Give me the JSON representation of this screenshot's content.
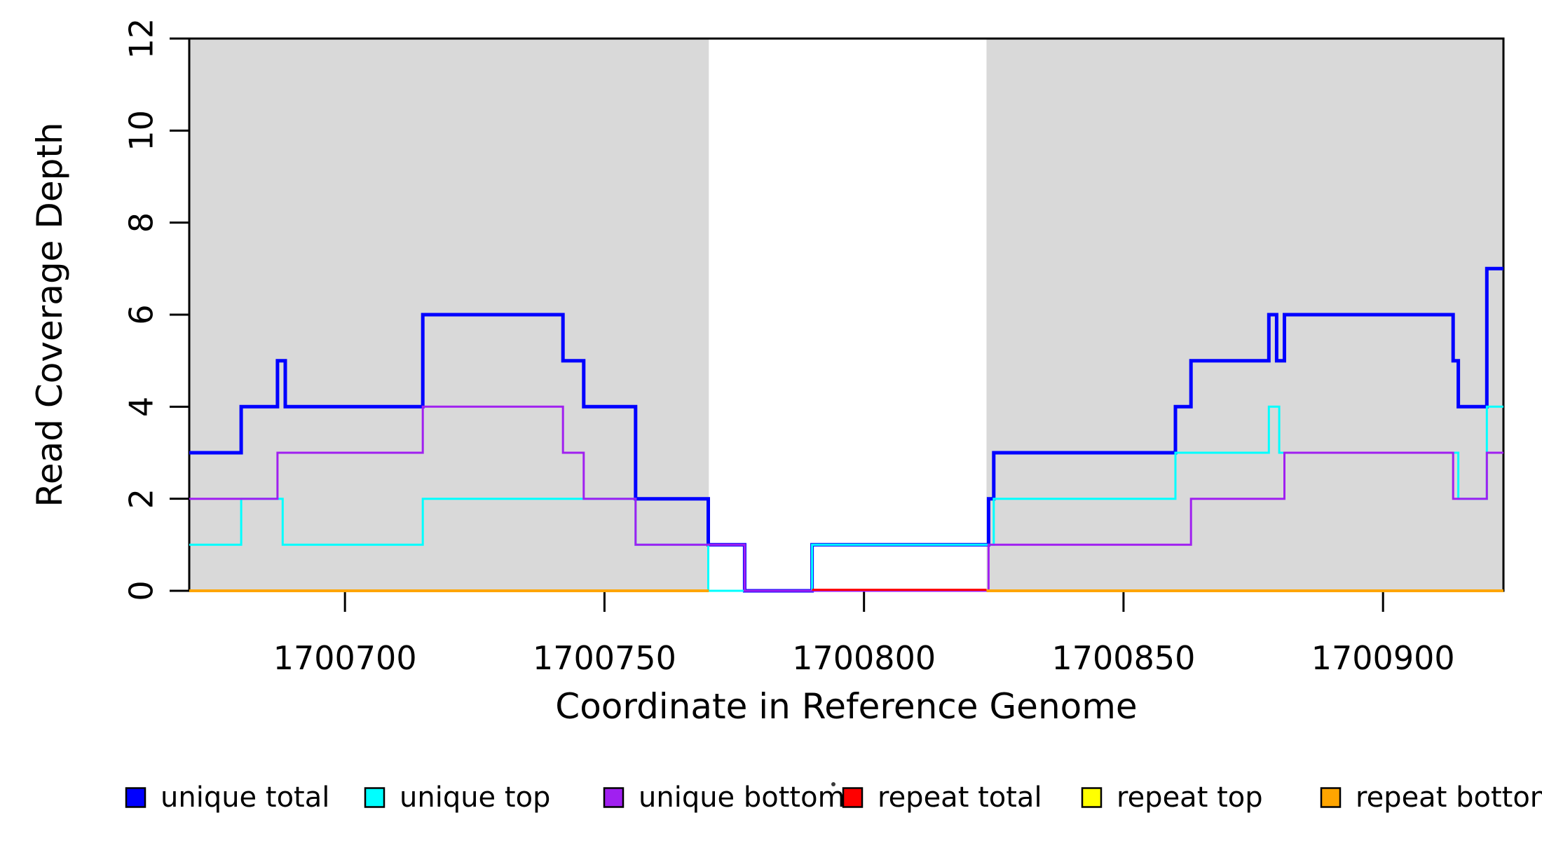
{
  "chart_data": {
    "type": "line",
    "subtype": "step",
    "title": "",
    "xlabel": "Coordinate in Reference Genome",
    "ylabel": "Read Coverage Depth",
    "xlim": [
      1700670,
      1700923.2
    ],
    "ylim": [
      0,
      12
    ],
    "x_ticks": [
      1700700,
      1700750,
      1700800,
      1700850,
      1700900
    ],
    "y_ticks": [
      0,
      2,
      4,
      6,
      8,
      10,
      12
    ],
    "grid": "off",
    "legend_position": "bottom",
    "shaded_regions": [
      {
        "name": "repeat-region-left",
        "from": 1700670,
        "to": 1700770.1,
        "color": "#D9D9D9"
      },
      {
        "name": "repeat-region-right",
        "from": 1700823.6,
        "to": 1700923.2,
        "color": "#D9D9D9"
      }
    ],
    "series": [
      {
        "name": "unique total",
        "color": "#0000FF",
        "width": 5,
        "steps": [
          [
            1700670,
            3
          ],
          [
            1700680,
            4
          ],
          [
            1700687,
            5
          ],
          [
            1700688.5,
            4
          ],
          [
            1700715,
            6
          ],
          [
            1700742,
            5
          ],
          [
            1700746,
            4
          ],
          [
            1700756,
            2
          ],
          [
            1700770,
            1
          ],
          [
            1700777,
            0
          ],
          [
            1700790,
            1
          ],
          [
            1700824,
            2
          ],
          [
            1700825,
            3
          ],
          [
            1700860,
            4
          ],
          [
            1700863,
            5
          ],
          [
            1700878,
            6
          ],
          [
            1700879.5,
            5
          ],
          [
            1700881,
            6
          ],
          [
            1700913.5,
            5
          ],
          [
            1700914.5,
            4
          ],
          [
            1700920,
            7
          ]
        ]
      },
      {
        "name": "unique top",
        "color": "#00FFFF",
        "width": 3,
        "steps": [
          [
            1700670,
            1
          ],
          [
            1700680,
            2
          ],
          [
            1700688,
            1
          ],
          [
            1700715,
            2
          ],
          [
            1700756,
            1
          ],
          [
            1700770,
            0
          ],
          [
            1700790,
            1
          ],
          [
            1700825,
            2
          ],
          [
            1700860,
            3
          ],
          [
            1700878,
            4
          ],
          [
            1700880,
            3
          ],
          [
            1700914.5,
            2
          ],
          [
            1700920,
            4
          ]
        ]
      },
      {
        "name": "unique bottom",
        "color": "#A020F0",
        "width": 3,
        "steps": [
          [
            1700670,
            2
          ],
          [
            1700687,
            3
          ],
          [
            1700715,
            4
          ],
          [
            1700742,
            3
          ],
          [
            1700746,
            2
          ],
          [
            1700756,
            1
          ],
          [
            1700777,
            0
          ],
          [
            1700824,
            1
          ],
          [
            1700863,
            2
          ],
          [
            1700881,
            3
          ],
          [
            1700913.5,
            2
          ],
          [
            1700920,
            3
          ]
        ]
      },
      {
        "name": "repeat total",
        "color": "#FF0000",
        "width": 3,
        "steps": [
          [
            1700670,
            0
          ]
        ]
      },
      {
        "name": "repeat top",
        "color": "#FFFF00",
        "width": 3,
        "steps": [
          [
            1700670,
            0
          ]
        ]
      },
      {
        "name": "repeat bottom",
        "color": "#FFA500",
        "width": 4,
        "steps": [
          [
            1700670,
            0
          ]
        ]
      }
    ],
    "legend": [
      {
        "label": "unique total",
        "color": "#0000FF"
      },
      {
        "label": "unique top",
        "color": "#00FFFF"
      },
      {
        "label": "unique bottom",
        "color": "#A020F0"
      },
      {
        "label": "repeat total",
        "color": "#FF0000"
      },
      {
        "label": "repeat top",
        "color": "#FFFF00"
      },
      {
        "label": "repeat bottom",
        "color": "#FFA500"
      }
    ]
  },
  "render_hints": {
    "comment": "layering seen in screenshot: orange hides red/yellow at depth 0 inside gray regions; in the white gap the red+purple pair at 0 shows as a pink/purple band",
    "red_visible_ranges": [
      [
        1700790,
        1700823.6
      ]
    ],
    "yellow_visible_ranges": [],
    "orange_visible_ranges": [
      [
        1700670,
        1700770.1
      ],
      [
        1700823.6,
        1700923.2
      ]
    ],
    "axis_color": "#000000",
    "shade_color": "#D9D9D9"
  }
}
